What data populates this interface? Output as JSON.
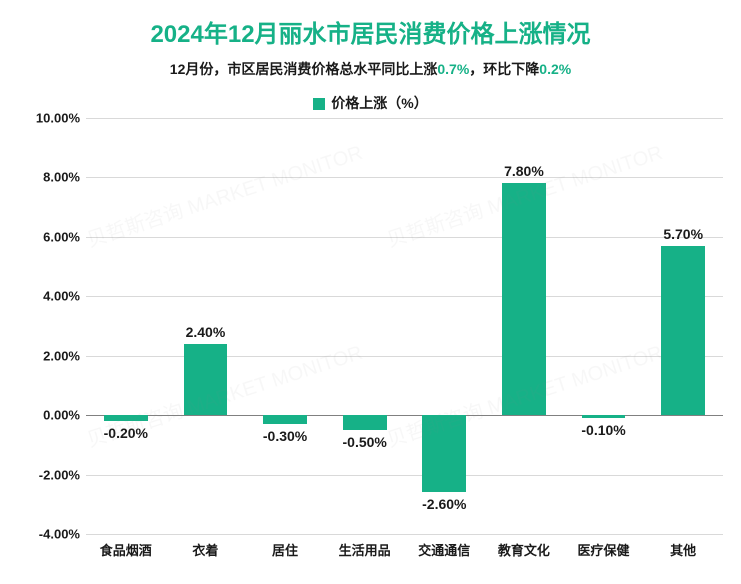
{
  "title": {
    "text": "2024年12月丽水市居民消费价格上涨情况",
    "color": "#16b187",
    "fontsize": 24
  },
  "subtitle": {
    "prefix": "12月份，市区居民消费价格总水平同比上涨",
    "val1": "0.7%",
    "mid": "，环比下降",
    "val2": "0.2%",
    "color": "#1a1a1a",
    "highlight_color": "#16b187",
    "fontsize": 14
  },
  "legend": {
    "label": "价格上涨（%）",
    "swatch_color": "#16b187",
    "fontsize": 14,
    "text_color": "#1a1a1a"
  },
  "chart": {
    "type": "bar",
    "categories": [
      "食品烟酒",
      "衣着",
      "居住",
      "生活用品",
      "交通通信",
      "教育文化",
      "医疗保健",
      "其他"
    ],
    "values": [
      -0.2,
      2.4,
      -0.3,
      -0.5,
      -2.6,
      7.8,
      -0.1,
      5.7
    ],
    "value_labels": [
      "-0.20%",
      "2.40%",
      "-0.30%",
      "-0.50%",
      "-2.60%",
      "7.80%",
      "-0.10%",
      "5.70%"
    ],
    "bar_color": "#16b187",
    "ylim": [
      -4,
      10
    ],
    "ytick_step": 2,
    "yticks": [
      "-4.00%",
      "-2.00%",
      "0.00%",
      "2.00%",
      "4.00%",
      "6.00%",
      "8.00%",
      "10.00%"
    ],
    "ytick_values": [
      -4,
      -2,
      0,
      2,
      4,
      6,
      8,
      10
    ],
    "grid_color": "#d9d9d9",
    "zero_line_color": "#808080",
    "axis_label_color": "#1a1a1a",
    "axis_label_fontsize": 13,
    "value_label_fontsize": 14,
    "bar_width_ratio": 0.55,
    "background_color": "#ffffff"
  },
  "watermark": {
    "text": "贝哲斯咨询 MARKET MONITOR",
    "color": "#888888"
  }
}
